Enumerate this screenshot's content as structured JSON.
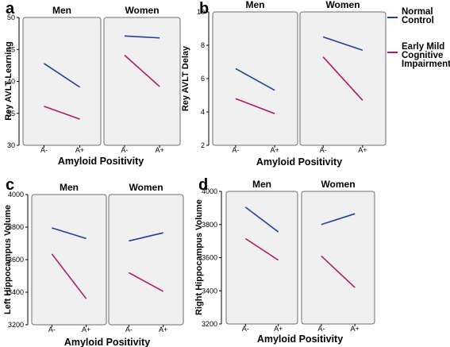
{
  "legend": {
    "placement": "top-right",
    "entries": [
      {
        "lines": [
          "Normal",
          "Control"
        ],
        "color": "#1f3f99"
      },
      {
        "lines": [
          "Early Mild",
          "Cognitive",
          "Impairment"
        ],
        "color": "#b0186e"
      }
    ]
  },
  "chart_data": [
    {
      "panel_label": "a",
      "type": "line",
      "xlabel": "Amyloid Positivity",
      "ylabel": "Rey AVLT Learning",
      "ylim": [
        30,
        50
      ],
      "yticks": [
        30,
        35,
        40,
        45,
        50
      ],
      "categories": [
        "A-",
        "A+"
      ],
      "grid": false,
      "groups": [
        {
          "title": "Men",
          "series": [
            {
              "name": "Normal Control",
              "values": [
                42.8,
                39.1
              ]
            },
            {
              "name": "Early Mild Cognitive Impairment",
              "values": [
                36.1,
                34.1
              ]
            }
          ]
        },
        {
          "title": "Women",
          "series": [
            {
              "name": "Normal Control",
              "values": [
                47.1,
                46.8
              ]
            },
            {
              "name": "Early Mild Cognitive Impairment",
              "values": [
                44.1,
                39.2
              ]
            }
          ]
        }
      ]
    },
    {
      "panel_label": "b",
      "type": "line",
      "xlabel": "Amyloid Positivity",
      "ylabel": "Rey AVLT Delay",
      "ylim": [
        2,
        10
      ],
      "yticks": [
        2,
        4,
        6,
        8,
        10
      ],
      "categories": [
        "A-",
        "A+"
      ],
      "grid": false,
      "groups": [
        {
          "title": "Men",
          "series": [
            {
              "name": "Normal Control",
              "values": [
                6.6,
                5.3
              ]
            },
            {
              "name": "Early Mild Cognitive Impairment",
              "values": [
                4.8,
                3.9
              ]
            }
          ]
        },
        {
          "title": "Women",
          "series": [
            {
              "name": "Normal Control",
              "values": [
                8.5,
                7.7
              ]
            },
            {
              "name": "Early Mild Cognitive Impairment",
              "values": [
                7.3,
                4.7
              ]
            }
          ]
        }
      ]
    },
    {
      "panel_label": "c",
      "type": "line",
      "xlabel": "Amyloid Positivity",
      "ylabel": "Left Hippocampus Volume",
      "ylim": [
        3200,
        4000
      ],
      "yticks": [
        3200,
        3400,
        3600,
        3800,
        4000
      ],
      "categories": [
        "A-",
        "A+"
      ],
      "grid": false,
      "groups": [
        {
          "title": "Men",
          "series": [
            {
              "name": "Normal Control",
              "values": [
                3795,
                3730
              ]
            },
            {
              "name": "Early Mild Cognitive Impairment",
              "values": [
                3635,
                3360
              ]
            }
          ]
        },
        {
          "title": "Women",
          "series": [
            {
              "name": "Normal Control",
              "values": [
                3715,
                3765
              ]
            },
            {
              "name": "Early Mild Cognitive Impairment",
              "values": [
                3520,
                3405
              ]
            }
          ]
        }
      ]
    },
    {
      "panel_label": "d",
      "type": "line",
      "xlabel": "Amyloid Positivity",
      "ylabel": "Right Hippocampus Volume",
      "ylim": [
        3200,
        4000
      ],
      "yticks": [
        3200,
        3400,
        3600,
        3800,
        4000
      ],
      "categories": [
        "A-",
        "A+"
      ],
      "grid": false,
      "groups": [
        {
          "title": "Men",
          "series": [
            {
              "name": "Normal Control",
              "values": [
                3905,
                3755
              ]
            },
            {
              "name": "Early Mild Cognitive Impairment",
              "values": [
                3715,
                3585
              ]
            }
          ]
        },
        {
          "title": "Women",
          "series": [
            {
              "name": "Normal Control",
              "values": [
                3800,
                3865
              ]
            },
            {
              "name": "Early Mild Cognitive Impairment",
              "values": [
                3610,
                3420
              ]
            }
          ]
        }
      ]
    }
  ]
}
